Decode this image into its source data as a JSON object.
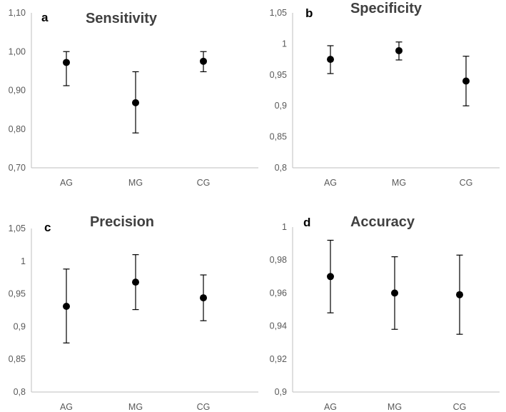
{
  "chart_data": [
    {
      "type": "scatter",
      "panel": "a",
      "title": "Sensitivity",
      "categories": [
        "AG",
        "MG",
        "CG"
      ],
      "values": [
        0.972,
        0.868,
        0.975
      ],
      "error_low": [
        0.912,
        0.79,
        0.948
      ],
      "error_high": [
        1.0,
        0.948,
        1.0
      ],
      "ylim": [
        0.7,
        1.1
      ],
      "yticks": [
        0.7,
        0.8,
        0.9,
        1.0,
        1.1
      ],
      "ytick_labels": [
        "0,70",
        "0,80",
        "0,90",
        "1,00",
        "1,10"
      ],
      "xlabel": "",
      "ylabel": ""
    },
    {
      "type": "scatter",
      "panel": "b",
      "title": "Specificity",
      "categories": [
        "AG",
        "MG",
        "CG"
      ],
      "values": [
        0.975,
        0.989,
        0.94
      ],
      "error_low": [
        0.952,
        0.974,
        0.9
      ],
      "error_high": [
        0.997,
        1.003,
        0.98
      ],
      "ylim": [
        0.8,
        1.05
      ],
      "yticks": [
        0.8,
        0.85,
        0.9,
        0.95,
        1.0,
        1.05
      ],
      "ytick_labels": [
        "0,8",
        "0,85",
        "0,9",
        "0,95",
        "1",
        "1,05"
      ],
      "xlabel": "",
      "ylabel": ""
    },
    {
      "type": "scatter",
      "panel": "c",
      "title": "Precision",
      "categories": [
        "AG",
        "MG",
        "CG"
      ],
      "values": [
        0.931,
        0.968,
        0.944
      ],
      "error_low": [
        0.875,
        0.926,
        0.909
      ],
      "error_high": [
        0.988,
        1.01,
        0.979
      ],
      "ylim": [
        0.8,
        1.05
      ],
      "yticks": [
        0.8,
        0.85,
        0.9,
        0.95,
        1.0,
        1.05
      ],
      "ytick_labels": [
        "0,8",
        "0,85",
        "0,9",
        "0,95",
        "1",
        "1,05"
      ],
      "xlabel": "",
      "ylabel": ""
    },
    {
      "type": "scatter",
      "panel": "d",
      "title": "Accuracy",
      "categories": [
        "AG",
        "MG",
        "CG"
      ],
      "values": [
        0.97,
        0.96,
        0.959
      ],
      "error_low": [
        0.948,
        0.938,
        0.935
      ],
      "error_high": [
        0.992,
        0.982,
        0.983
      ],
      "ylim": [
        0.9,
        1.0
      ],
      "yticks": [
        0.9,
        0.92,
        0.94,
        0.96,
        0.98,
        1.0
      ],
      "ytick_labels": [
        "0,9",
        "0,92",
        "0,94",
        "0,96",
        "0,98",
        "1"
      ],
      "xlabel": "",
      "ylabel": ""
    }
  ]
}
